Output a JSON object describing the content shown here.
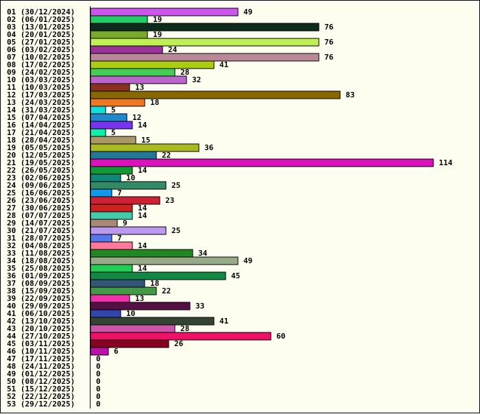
{
  "chart_data": {
    "type": "bar",
    "orientation": "horizontal",
    "title": "",
    "xlabel": "",
    "ylabel": "",
    "grid": false,
    "categories": [
      "01 (30/12/2024)",
      "02 (06/01/2025)",
      "03 (13/01/2025)",
      "04 (20/01/2025)",
      "05 (27/01/2025)",
      "06 (03/02/2025)",
      "07 (10/02/2025)",
      "08 (17/02/2025)",
      "09 (24/02/2025)",
      "10 (03/03/2025)",
      "11 (10/03/2025)",
      "12 (17/03/2025)",
      "13 (24/03/2025)",
      "14 (31/03/2025)",
      "15 (07/04/2025)",
      "16 (14/04/2025)",
      "17 (21/04/2025)",
      "18 (28/04/2025)",
      "19 (05/05/2025)",
      "20 (12/05/2025)",
      "21 (19/05/2025)",
      "22 (26/05/2025)",
      "23 (02/06/2025)",
      "24 (09/06/2025)",
      "25 (16/06/2025)",
      "26 (23/06/2025)",
      "27 (30/06/2025)",
      "28 (07/07/2025)",
      "29 (14/07/2025)",
      "30 (21/07/2025)",
      "31 (28/07/2025)",
      "32 (04/08/2025)",
      "33 (11/08/2025)",
      "34 (18/08/2025)",
      "35 (25/08/2025)",
      "36 (01/09/2025)",
      "37 (08/09/2025)",
      "38 (15/09/2025)",
      "39 (22/09/2025)",
      "40 (29/09/2025)",
      "41 (06/10/2025)",
      "42 (13/10/2025)",
      "43 (20/10/2025)",
      "44 (27/10/2025)",
      "45 (03/11/2025)",
      "46 (10/11/2025)",
      "47 (17/11/2025)",
      "48 (24/11/2025)",
      "49 (01/12/2025)",
      "50 (08/12/2025)",
      "51 (15/12/2025)",
      "52 (22/12/2025)",
      "53 (29/12/2025)"
    ],
    "values": [
      49,
      19,
      76,
      19,
      76,
      24,
      76,
      41,
      28,
      32,
      13,
      83,
      18,
      5,
      12,
      14,
      5,
      15,
      36,
      22,
      114,
      14,
      10,
      25,
      7,
      23,
      14,
      14,
      9,
      25,
      7,
      14,
      34,
      49,
      14,
      45,
      18,
      22,
      13,
      33,
      10,
      41,
      28,
      60,
      26,
      6,
      0,
      0,
      0,
      0,
      0,
      0,
      0
    ],
    "colors": [
      "#cc55ee",
      "#22cc66",
      "#0d2a1c",
      "#7aaa2a",
      "#c0ee55",
      "#993399",
      "#bb8899",
      "#aacc11",
      "#44cc55",
      "#bb66cc",
      "#883322",
      "#886600",
      "#ee7722",
      "#11dddd",
      "#2288cc",
      "#7733ee",
      "#11eeaa",
      "#aa9966",
      "#aabb22",
      "#227799",
      "#dd11bb",
      "#119933",
      "#118877",
      "#338866",
      "#1199ee",
      "#cc2233",
      "#cc2222",
      "#44ccaa",
      "#aa8877",
      "#bb99ee",
      "#5577ee",
      "#ff7799",
      "#228822",
      "#99aa88",
      "#22cc55",
      "#118844",
      "#335577",
      "#449944",
      "#ee33aa",
      "#551144",
      "#3344aa",
      "#334433",
      "#cc55aa",
      "#ee1166",
      "#880022",
      "#bb11aa",
      "#000000",
      "#000000",
      "#000000",
      "#000000",
      "#000000",
      "#000000",
      "#000000"
    ],
    "xlim": [
      0,
      114
    ]
  }
}
